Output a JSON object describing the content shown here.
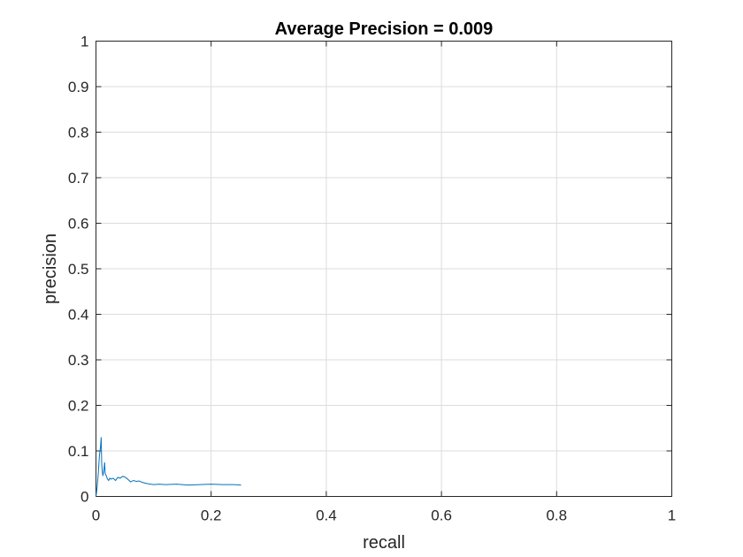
{
  "chart_data": {
    "type": "line",
    "title": "Average Precision = 0.009",
    "xlabel": "recall",
    "ylabel": "precision",
    "xlim": [
      0,
      1
    ],
    "ylim": [
      0,
      1
    ],
    "grid": true,
    "xticks": [
      "0",
      "0.2",
      "0.4",
      "0.6",
      "0.8",
      "1"
    ],
    "yticks": [
      "0",
      "0.1",
      "0.2",
      "0.3",
      "0.4",
      "0.5",
      "0.6",
      "0.7",
      "0.8",
      "0.9",
      "1"
    ],
    "line_color": "#0072bd",
    "series": [
      {
        "x": [
          0,
          0.002,
          0.004,
          0.006,
          0.008,
          0.009,
          0.01,
          0.011,
          0.012,
          0.014,
          0.015,
          0.016,
          0.018,
          0.02,
          0.022,
          0.024,
          0.026,
          0.03,
          0.034,
          0.038,
          0.042,
          0.046,
          0.05,
          0.055,
          0.06,
          0.065,
          0.07,
          0.075,
          0.08,
          0.09,
          0.1,
          0.11,
          0.12,
          0.14,
          0.16,
          0.18,
          0.2,
          0.22,
          0.24,
          0.252
        ],
        "y": [
          0,
          0.02,
          0.05,
          0.09,
          0.11,
          0.13,
          0.07,
          0.055,
          0.045,
          0.06,
          0.075,
          0.05,
          0.045,
          0.038,
          0.035,
          0.04,
          0.038,
          0.04,
          0.035,
          0.042,
          0.04,
          0.044,
          0.043,
          0.038,
          0.032,
          0.035,
          0.033,
          0.034,
          0.031,
          0.028,
          0.026,
          0.027,
          0.026,
          0.027,
          0.025,
          0.026,
          0.027,
          0.026,
          0.026,
          0.025
        ]
      }
    ]
  }
}
